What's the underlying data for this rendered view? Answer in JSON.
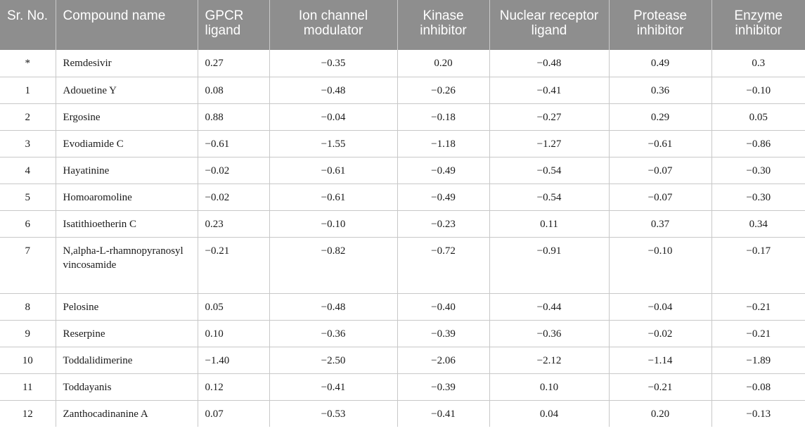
{
  "table": {
    "headers": [
      "Sr. No.",
      "Compound name",
      "GPCR ligand",
      "Ion channel modulator",
      "Kinase inhibitor",
      "Nuclear receptor ligand",
      "Protease inhibitor",
      "Enzyme inhibitor"
    ],
    "rows": [
      [
        "*",
        "Remdesivir",
        "0.27",
        "−0.35",
        "0.20",
        "−0.48",
        "0.49",
        "0.3"
      ],
      [
        "1",
        "Adouetine Y",
        "0.08",
        "−0.48",
        "−0.26",
        "−0.41",
        "0.36",
        "−0.10"
      ],
      [
        "2",
        "Ergosine",
        "0.88",
        "−0.04",
        "−0.18",
        "−0.27",
        "0.29",
        "0.05"
      ],
      [
        "3",
        "Evodiamide C",
        "−0.61",
        "−1.55",
        "−1.18",
        "−1.27",
        "−0.61",
        "−0.86"
      ],
      [
        "4",
        "Hayatinine",
        "−0.02",
        "−0.61",
        "−0.49",
        "−0.54",
        "−0.07",
        "−0.30"
      ],
      [
        "5",
        "Homoaromoline",
        "−0.02",
        "−0.61",
        "−0.49",
        "−0.54",
        "−0.07",
        "−0.30"
      ],
      [
        "6",
        "Isatithioetherin C",
        "0.23",
        "−0.10",
        "−0.23",
        "0.11",
        "0.37",
        "0.34"
      ],
      [
        "7",
        "N,alpha-L-rhamnopyranosyl vincosamide",
        "−0.21",
        "−0.82",
        "−0.72",
        "−0.91",
        "−0.10",
        "−0.17"
      ],
      [
        "8",
        "Pelosine",
        "0.05",
        "−0.48",
        "−0.40",
        "−0.44",
        "−0.04",
        "−0.21"
      ],
      [
        "9",
        "Reserpine",
        "0.10",
        "−0.36",
        "−0.39",
        "−0.36",
        "−0.02",
        "−0.21"
      ],
      [
        "10",
        "Toddalidimerine",
        "−1.40",
        "−2.50",
        "−2.06",
        "−2.12",
        "−1.14",
        "−1.89"
      ],
      [
        "11",
        "Toddayanis",
        "0.12",
        "−0.41",
        "−0.39",
        "0.10",
        "−0.21",
        "−0.08"
      ],
      [
        "12",
        "Zanthocadinanine A",
        "0.07",
        "−0.53",
        "−0.41",
        "0.04",
        "0.20",
        "−0.13"
      ]
    ]
  },
  "colors": {
    "header_background": "#8e8e8e",
    "header_text": "#ffffff",
    "grid_line": "#c8c8c8",
    "body_text": "#1a1a1a"
  }
}
